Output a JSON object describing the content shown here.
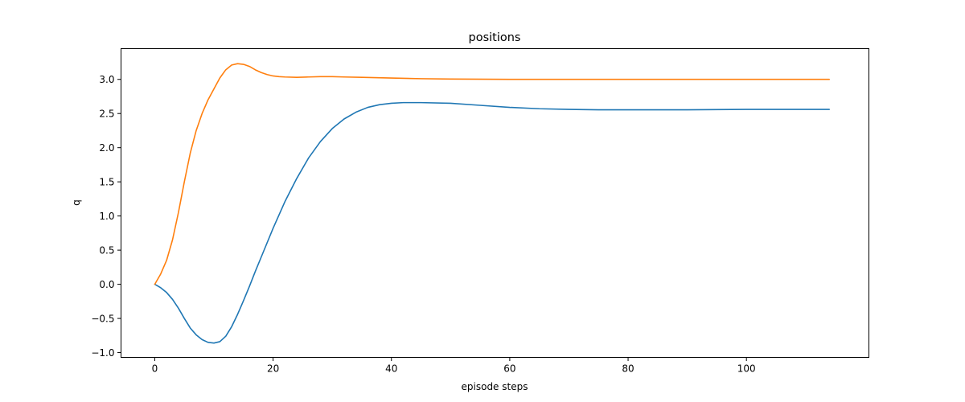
{
  "chart_data": {
    "type": "line",
    "title": "positions",
    "xlabel": "episode steps",
    "ylabel": "q",
    "xlim": [
      -5.7,
      120.7
    ],
    "ylim": [
      -1.07,
      3.45
    ],
    "xticks": [
      0,
      20,
      40,
      60,
      80,
      100
    ],
    "xtick_labels": [
      "0",
      "20",
      "40",
      "60",
      "80",
      "100"
    ],
    "yticks": [
      -1.0,
      -0.5,
      0.0,
      0.5,
      1.0,
      1.5,
      2.0,
      2.5,
      3.0
    ],
    "ytick_labels": [
      "−1.0",
      "−0.5",
      "0.0",
      "0.5",
      "1.0",
      "1.5",
      "2.0",
      "2.5",
      "3.0"
    ],
    "grid": false,
    "series": [
      {
        "color": "#1f77b4",
        "x": [
          0,
          1,
          2,
          3,
          4,
          5,
          6,
          7,
          8,
          9,
          10,
          11,
          12,
          13,
          14,
          15,
          16,
          17,
          18,
          20,
          22,
          24,
          26,
          28,
          30,
          32,
          34,
          36,
          38,
          40,
          42,
          45,
          50,
          55,
          60,
          65,
          70,
          75,
          80,
          90,
          100,
          114
        ],
        "y": [
          0.0,
          -0.05,
          -0.12,
          -0.22,
          -0.35,
          -0.5,
          -0.64,
          -0.74,
          -0.81,
          -0.85,
          -0.86,
          -0.84,
          -0.76,
          -0.62,
          -0.44,
          -0.24,
          -0.03,
          0.19,
          0.4,
          0.82,
          1.21,
          1.55,
          1.85,
          2.09,
          2.28,
          2.42,
          2.52,
          2.59,
          2.63,
          2.65,
          2.66,
          2.66,
          2.65,
          2.62,
          2.59,
          2.57,
          2.56,
          2.555,
          2.555,
          2.555,
          2.56,
          2.56
        ]
      },
      {
        "color": "#ff7f0e",
        "x": [
          0,
          1,
          2,
          3,
          4,
          5,
          6,
          7,
          8,
          9,
          10,
          11,
          12,
          13,
          14,
          15,
          16,
          17,
          18,
          19,
          20,
          21,
          22,
          24,
          26,
          28,
          30,
          32,
          35,
          40,
          45,
          50,
          60,
          70,
          80,
          90,
          100,
          114
        ],
        "y": [
          0.0,
          0.15,
          0.35,
          0.65,
          1.05,
          1.5,
          1.92,
          2.25,
          2.5,
          2.7,
          2.86,
          3.02,
          3.14,
          3.21,
          3.23,
          3.22,
          3.19,
          3.14,
          3.1,
          3.07,
          3.05,
          3.04,
          3.035,
          3.03,
          3.035,
          3.04,
          3.04,
          3.035,
          3.03,
          3.02,
          3.01,
          3.005,
          3.0,
          3.0,
          3.0,
          3.0,
          3.0,
          3.0
        ]
      }
    ]
  }
}
